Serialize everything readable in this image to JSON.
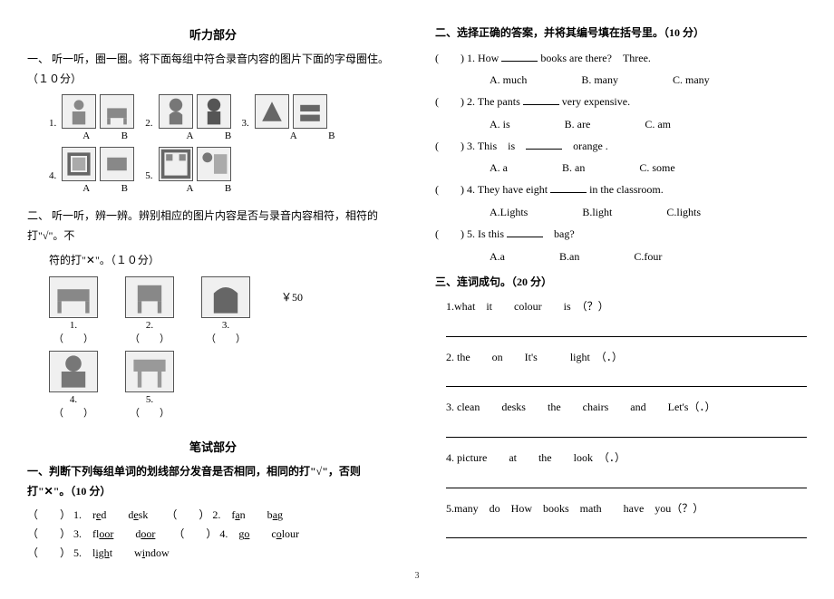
{
  "left": {
    "listening_title": "听力部分",
    "s1_heading_prefix": "一、",
    "s1_heading": "听一听，圈一圈。将下面每组中符合录音内容的图片下面的字母圈住。（１０分）",
    "row1": [
      {
        "num": "1.",
        "labels": [
          "A",
          "B"
        ]
      },
      {
        "num": "2.",
        "labels": [
          "A",
          "B"
        ]
      },
      {
        "num": "3.",
        "labels": [
          "A",
          "B"
        ]
      }
    ],
    "row2": [
      {
        "num": "4.",
        "labels": [
          "A",
          "B"
        ]
      },
      {
        "num": "5.",
        "labels": [
          "A",
          "B"
        ]
      }
    ],
    "s2_heading_prefix": "二、",
    "s2_heading_l1": "听一听，辨一辨。辨别相应的图片内容是否与录音内容相符，相符的打\"√\"。不",
    "s2_heading_l2": "符的打\"✕\"。（１０分）",
    "s2_row1_nums": [
      "1.",
      "2.",
      "3."
    ],
    "s2_row1_yen": "￥50",
    "s2_paren": "（　　）",
    "s2_row2_nums": [
      "4.",
      "5."
    ],
    "written_title": "笔试部分",
    "w1_heading": "一、判断下列每组单词的划线部分发音是否相同，相同的打\"√\"，否则打\"✕\"。（10 分）",
    "w1_items": [
      {
        "n": "1.",
        "a": "red",
        "au": "e",
        "b": "desk",
        "bu": "e"
      },
      {
        "n": "2.",
        "a": "fan",
        "au": "a",
        "b": "bag",
        "bu": "a"
      },
      {
        "n": "3.",
        "a": "floor",
        "au": "oor",
        "b": "door",
        "bu": "oor"
      },
      {
        "n": "4.",
        "a": "go",
        "au": "o",
        "b": "colour",
        "bu": "o"
      },
      {
        "n": "5.",
        "a": "light",
        "au": "igh",
        "b": "window",
        "bu": "i"
      }
    ],
    "paren": "（　　）"
  },
  "right": {
    "s2_heading": "二、选择正确的答案，并将其编号填在括号里。（10 分）",
    "q": [
      {
        "n": "1.",
        "stem_a": "How ",
        "stem_b": " books are there?　Three.",
        "opts": [
          "A. much",
          "B. many",
          "C. many"
        ]
      },
      {
        "n": "2.",
        "stem_a": "The pants ",
        "stem_b": " very expensive.",
        "opts": [
          "A. is",
          "B. are",
          "C. am"
        ]
      },
      {
        "n": "3.",
        "stem_a": "This　is　",
        "stem_b": "　orange .",
        "opts": [
          "A. a",
          "B. an",
          "C. some"
        ]
      },
      {
        "n": "4.",
        "stem_a": "They have eight ",
        "stem_b": " in the classroom.",
        "opts": [
          "A.Lights",
          "B.light",
          "C.lights"
        ]
      },
      {
        "n": "5.",
        "stem_a": "Is this ",
        "stem_b": "　bag?",
        "opts": [
          "A.a",
          "B.an",
          "C.four"
        ]
      }
    ],
    "s3_heading": "三、连词成句。（20 分）",
    "sent": [
      "1.what　it　　colour　　is　（？）",
      "2. the　　on　　It's　　　light　（．）",
      "3. clean　　desks　　the　　chairs　　and　　Let's（．）",
      "4. picture　　at　　the　　look　（．）",
      "5.many　do　How　books　math　　have　you（？）"
    ],
    "paren_open": "(",
    "paren_close": ")"
  },
  "pagenum": "3"
}
